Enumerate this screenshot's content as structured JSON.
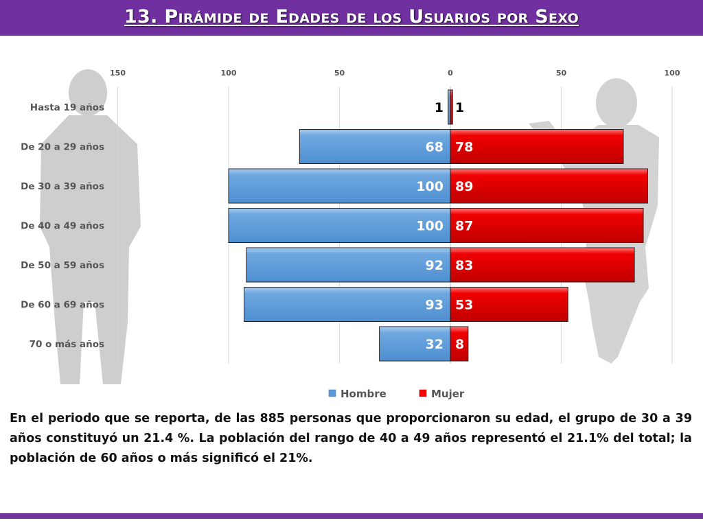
{
  "header": {
    "title": "13. Pirámide de Edades de los Usuarios por Sexo"
  },
  "description": "En el periodo que se reporta, de las 885 personas que proporcionaron su edad, el grupo de 30 a 39 años constituyó un 21.4 %. La población del rango de 40 a 49 años representó el 21.1% del total; la población de 60 años o más significó el 21%.",
  "colors": {
    "hombre": "#5b9bd5",
    "mujer": "#ff0000",
    "accent": "#7030a0"
  },
  "chart_data": {
    "type": "bar",
    "orientation": "horizontal-pyramid",
    "categories": [
      "Hasta 19 años",
      "De 20 a 29 años",
      "De 30 a 39 años",
      "De 40 a 49 años",
      "De 50 a 59 años",
      "De 60 a 69 años",
      "70 o más años"
    ],
    "series": [
      {
        "name": "Hombre",
        "side": "left",
        "values": [
          1,
          68,
          100,
          100,
          92,
          93,
          32
        ]
      },
      {
        "name": "Mujer",
        "side": "right",
        "values": [
          1,
          78,
          89,
          87,
          83,
          53,
          8
        ]
      }
    ],
    "x_ticks": [
      "150",
      "100",
      "50",
      "0",
      "50",
      "100"
    ],
    "xlim": [
      -150,
      100
    ],
    "grid": true,
    "legend": "bottom",
    "data_labels": true
  }
}
